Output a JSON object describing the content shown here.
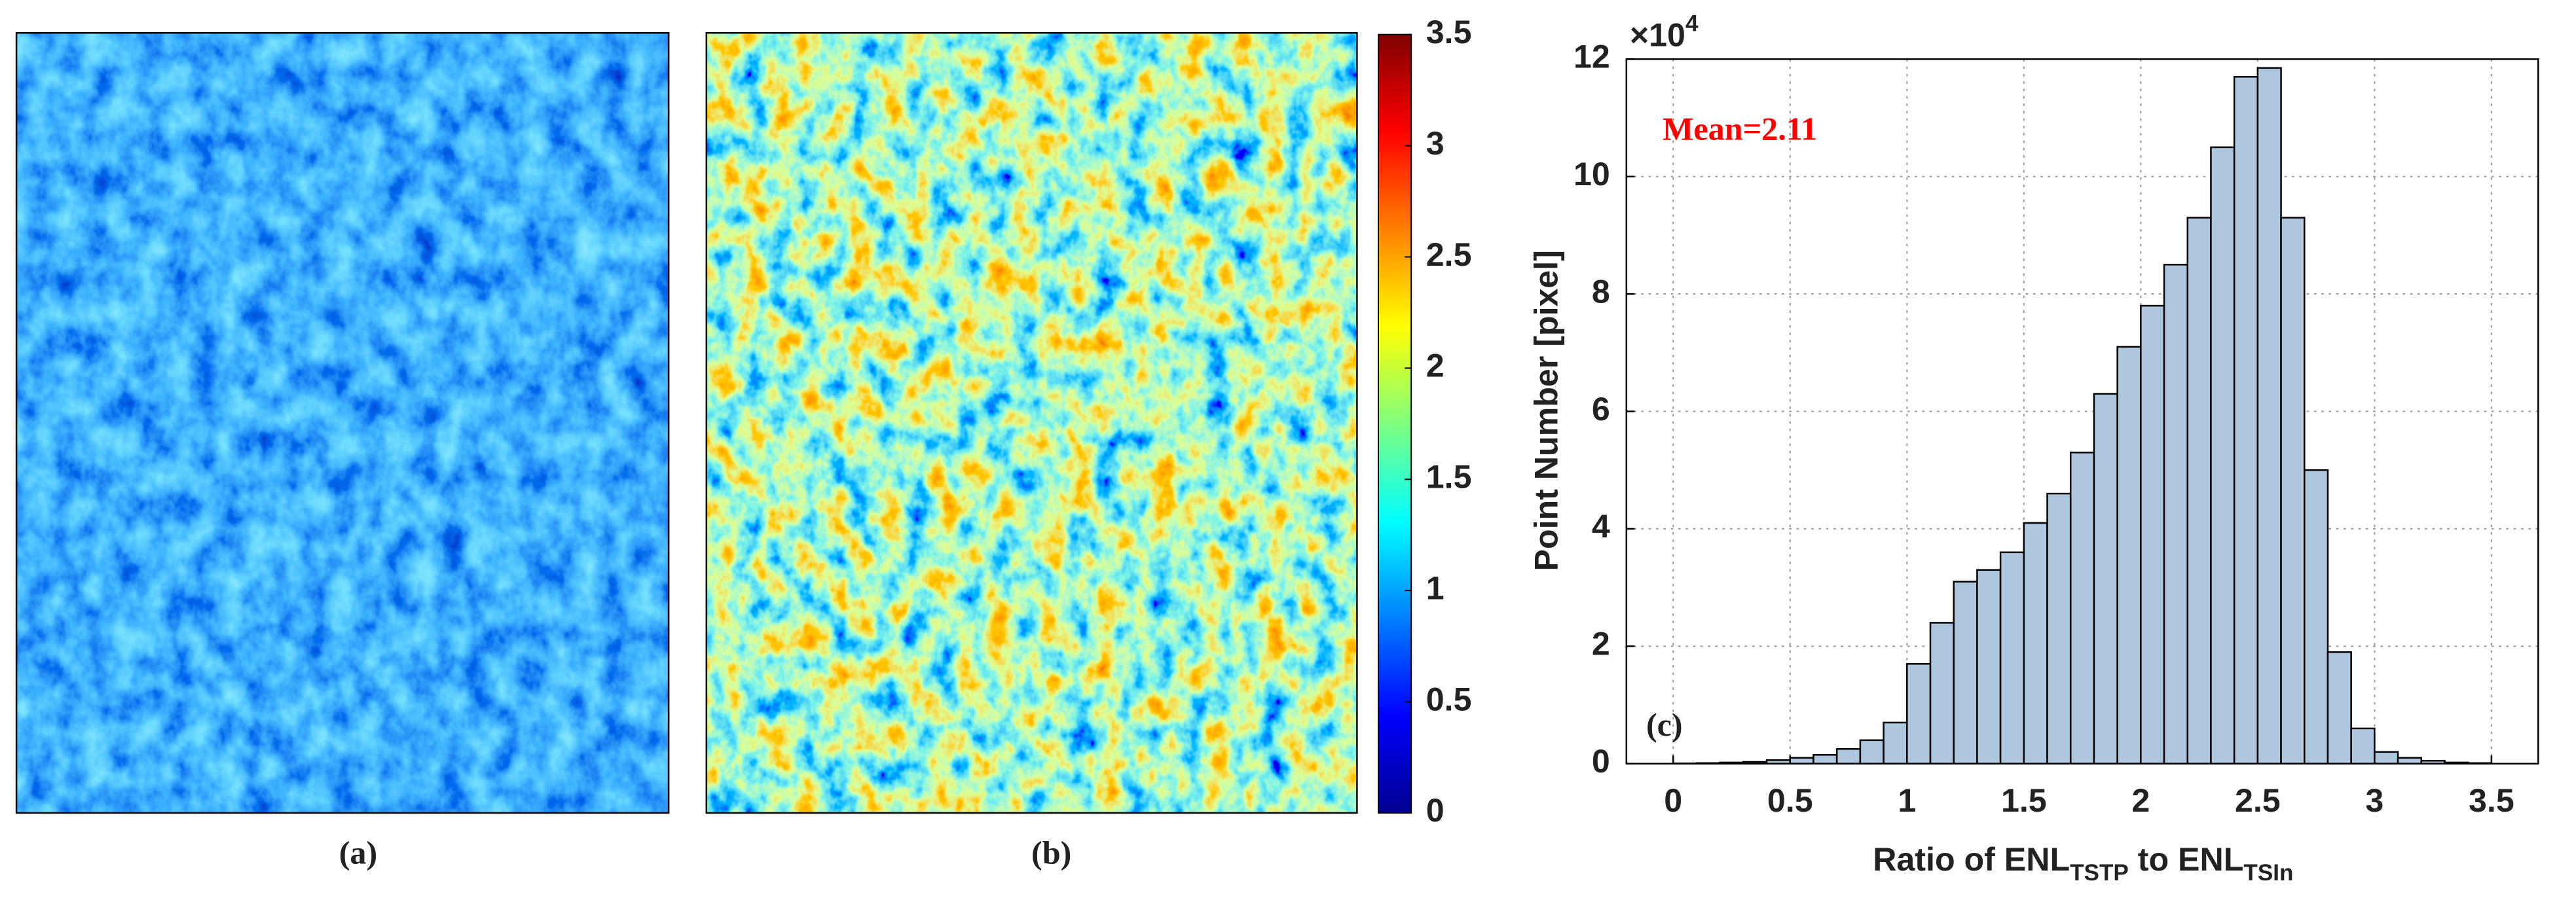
{
  "chart_data": {
    "type": "histogram",
    "panel_labels": [
      "(a)",
      "(b)",
      "(c)"
    ],
    "annotation": "Mean=2.11",
    "ylabel": "Point Number [pixel]",
    "xlabel": [
      "Ratio of ENL",
      "TSTP",
      " to ENL",
      "TSIn"
    ],
    "y_exponent": {
      "base": "×10",
      "power": "4"
    },
    "bins": [
      0,
      0.1,
      0.2,
      0.3,
      0.4,
      0.5,
      0.6,
      0.7,
      0.8,
      0.9,
      1.0,
      1.1,
      1.2,
      1.3,
      1.4,
      1.5,
      1.6,
      1.7,
      1.8,
      1.9,
      2.0,
      2.1,
      2.2,
      2.3,
      2.4,
      2.5,
      2.6,
      2.7,
      2.8,
      2.9,
      3.0,
      3.1,
      3.2,
      3.3,
      3.4,
      3.5
    ],
    "values": [
      0.005,
      0.01,
      0.02,
      0.03,
      0.06,
      0.1,
      0.15,
      0.25,
      0.4,
      0.7,
      1.7,
      2.4,
      3.1,
      3.3,
      3.6,
      4.1,
      4.6,
      5.3,
      6.3,
      7.1,
      7.8,
      8.5,
      9.3,
      10.5,
      11.7,
      11.85,
      9.3,
      5.0,
      1.9,
      0.6,
      0.2,
      0.1,
      0.05,
      0.02,
      0.01
    ],
    "color": "#aec6de",
    "xlim": [
      -0.2,
      3.7
    ],
    "xticks": [
      0,
      0.5,
      1,
      1.5,
      2,
      2.5,
      3,
      3.5
    ],
    "ylim": [
      0,
      12
    ],
    "yticks": [
      0,
      2,
      4,
      6,
      8,
      10,
      12
    ],
    "grid": true,
    "colorbar": {
      "clim": [
        0,
        3.5
      ],
      "ticks": [
        0,
        0.5,
        1,
        1.5,
        2,
        2.5,
        3,
        3.5
      ]
    }
  }
}
